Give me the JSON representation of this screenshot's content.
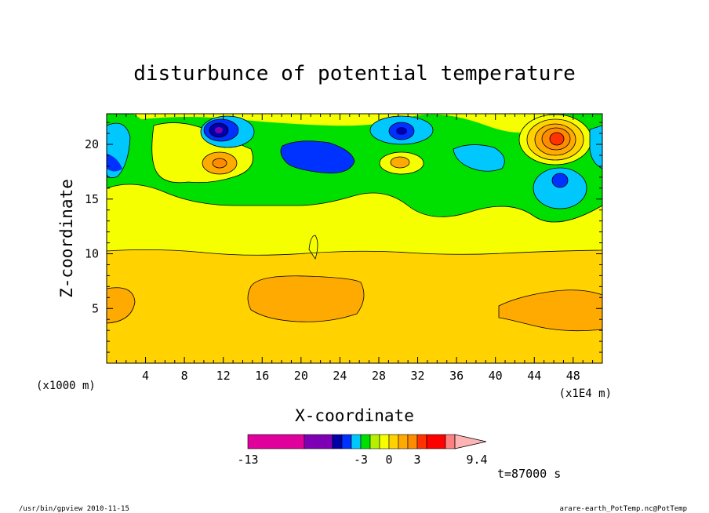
{
  "chart_data": {
    "type": "heatmap",
    "title": "disturbunce of potential temperature",
    "xlabel": "X-coordinate",
    "ylabel": "Z-coordinate",
    "x_unit_label": "(x1000 m)",
    "x_scale_label": "(x1E4 m)",
    "xlim": [
      0,
      51
    ],
    "ylim": [
      0,
      22.8
    ],
    "x_ticks": [
      4,
      8,
      12,
      16,
      20,
      24,
      28,
      32,
      36,
      40,
      44,
      48
    ],
    "y_ticks": [
      5,
      10,
      15,
      20
    ],
    "colorbar": {
      "levels": [
        -13,
        -11,
        -9,
        -7,
        -5,
        -3,
        -2,
        -1,
        0,
        1,
        2,
        3,
        4,
        5,
        7,
        9.4
      ],
      "tick_labels": [
        "-13",
        "-3",
        "0",
        "3",
        "9.4"
      ],
      "colors": [
        "#e0009c",
        "#7e00b4",
        "#0000a8",
        "#0032ff",
        "#00c8ff",
        "#00e000",
        "#b4f000",
        "#f5ff00",
        "#ffd200",
        "#ffaa00",
        "#ff8c00",
        "#ff3200",
        "#ff0000",
        "#ff8080",
        "#ffb4b4"
      ]
    },
    "time_label": "t=87000 s",
    "description_regions": [
      {
        "layer": "z 0-10.3",
        "value_class": "2 to 3"
      },
      {
        "layer": "z 10.3-16",
        "value_class": "1 to 2"
      },
      {
        "layer": "z 16-22.8",
        "value_class": "mixed -5 to 5"
      }
    ]
  },
  "footer": {
    "left": "/usr/bin/gpview  2010-11-15",
    "right": "arare-earth_PotTemp.nc@PotTemp"
  }
}
